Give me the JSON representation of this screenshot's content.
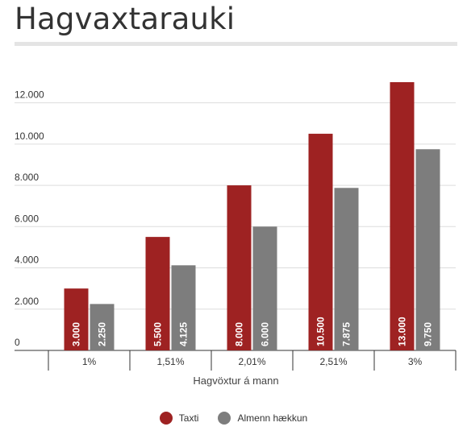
{
  "title": "Hagvaxtarauki",
  "chart_data": {
    "type": "bar",
    "categories": [
      "1%",
      "1,51%",
      "2,01%",
      "2,51%",
      "3%"
    ],
    "series": [
      {
        "name": "Taxti",
        "color": "#9e2222",
        "values": [
          3000,
          5500,
          8000,
          10500,
          13000
        ],
        "labels": [
          "3.000",
          "5.500",
          "8.000",
          "10.500",
          "13.000"
        ]
      },
      {
        "name": "Almenn hækkun",
        "color": "#7d7d7d",
        "values": [
          2250,
          4125,
          6000,
          7875,
          9750
        ],
        "labels": [
          "2.250",
          "4.125",
          "6.000",
          "7.875",
          "9.750"
        ]
      }
    ],
    "xlabel": "Hagvöxtur á mann",
    "ylabel": "",
    "ylim": [
      0,
      13000
    ],
    "yticks": [
      0,
      2000,
      4000,
      6000,
      8000,
      10000,
      12000
    ],
    "ytick_labels": [
      "0",
      "2.000",
      "4.000",
      "6.000",
      "8.000",
      "10.000",
      "12.000"
    ],
    "grid": true,
    "legend": "bottom-center"
  }
}
